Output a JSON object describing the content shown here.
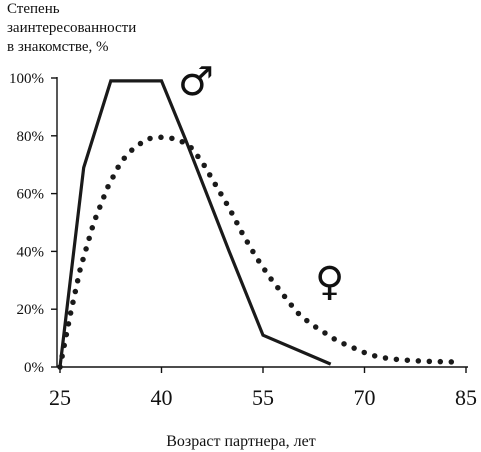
{
  "chart_data": {
    "type": "line",
    "ylabel_lines": [
      "Степень",
      "заинтересованности",
      "в знакомстве, %"
    ],
    "xlabel": "Возраст партнера, лет",
    "xlim": [
      25,
      85
    ],
    "ylim": [
      0,
      100
    ],
    "x_ticks": [
      "25",
      "40",
      "55",
      "70",
      "85"
    ],
    "y_ticks": [
      "0%",
      "20%",
      "40%",
      "60%",
      "80%",
      "100%"
    ],
    "grid": false,
    "series": [
      {
        "name": "♂",
        "style": "solid",
        "color": "#1a1a1a",
        "x": [
          25,
          28.5,
          32.5,
          40,
          43.5,
          50,
          55,
          65
        ],
        "y": [
          0,
          69,
          99,
          99,
          79,
          40,
          11,
          1
        ]
      },
      {
        "name": "♀",
        "style": "dotted",
        "color": "#1a1a1a",
        "x": [
          25,
          26.5,
          28,
          30,
          32,
          34,
          36,
          38,
          40,
          42,
          44,
          46,
          48,
          50,
          52,
          54,
          56,
          58,
          60,
          62,
          64,
          66,
          68,
          70,
          72,
          74,
          76,
          78,
          80,
          82,
          84
        ],
        "y": [
          0,
          18,
          34,
          50,
          62,
          71,
          76,
          79,
          79.5,
          79,
          77,
          71,
          63,
          55,
          46,
          38,
          31,
          25,
          19,
          15,
          12,
          9,
          7,
          5,
          3.5,
          2.8,
          2.4,
          2.1,
          1.9,
          1.8,
          1.7
        ]
      }
    ]
  }
}
